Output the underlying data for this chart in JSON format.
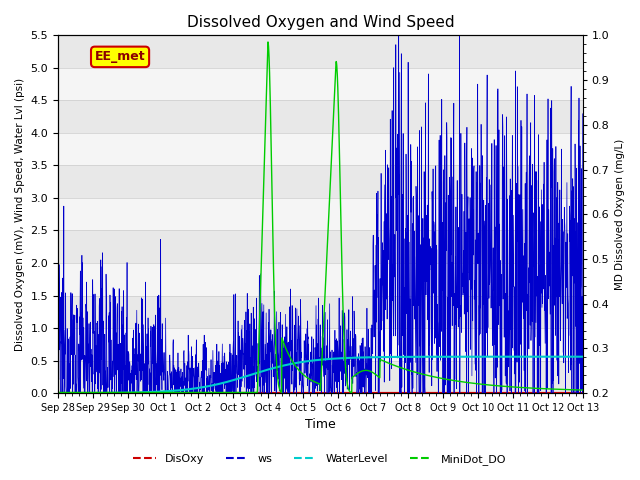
{
  "title": "Dissolved Oxygen and Wind Speed",
  "ylabel_left": "Dissolved Oxygen (mV), Wind Speed, Water Lvl (psi)",
  "ylabel_right": "MD Dissolved Oxygen (mg/L)",
  "xlabel": "Time",
  "ylim_left": [
    0.0,
    5.5
  ],
  "ylim_right": [
    0.2,
    1.0
  ],
  "annotation_text": "EE_met",
  "grid_color": "#cccccc",
  "band_colors": [
    "#e8e8e8",
    "#f5f5f5"
  ],
  "colors": {
    "DisOxy": "#cc0000",
    "ws": "#0000cc",
    "WaterLevel": "#00cccc",
    "MiniDot_DO": "#00cc00"
  },
  "x_tick_labels": [
    "Sep 28",
    "Sep 29",
    "Sep 30",
    "Oct 1",
    "Oct 2",
    "Oct 3",
    "Oct 4",
    "Oct 5",
    "Oct 6",
    "Oct 7",
    "Oct 8",
    "Oct 9",
    "Oct 10",
    "Oct 11",
    "Oct 12",
    "Oct 13"
  ],
  "x_tick_positions": [
    0,
    1,
    2,
    3,
    4,
    5,
    6,
    7,
    8,
    9,
    10,
    11,
    12,
    13,
    14,
    15
  ],
  "yticks_left": [
    0.0,
    0.5,
    1.0,
    1.5,
    2.0,
    2.5,
    3.0,
    3.5,
    4.0,
    4.5,
    5.0,
    5.5
  ],
  "yticks_right": [
    0.2,
    0.3,
    0.4,
    0.5,
    0.6,
    0.7,
    0.8,
    0.9,
    1.0
  ],
  "figsize": [
    6.4,
    4.8
  ],
  "dpi": 100
}
